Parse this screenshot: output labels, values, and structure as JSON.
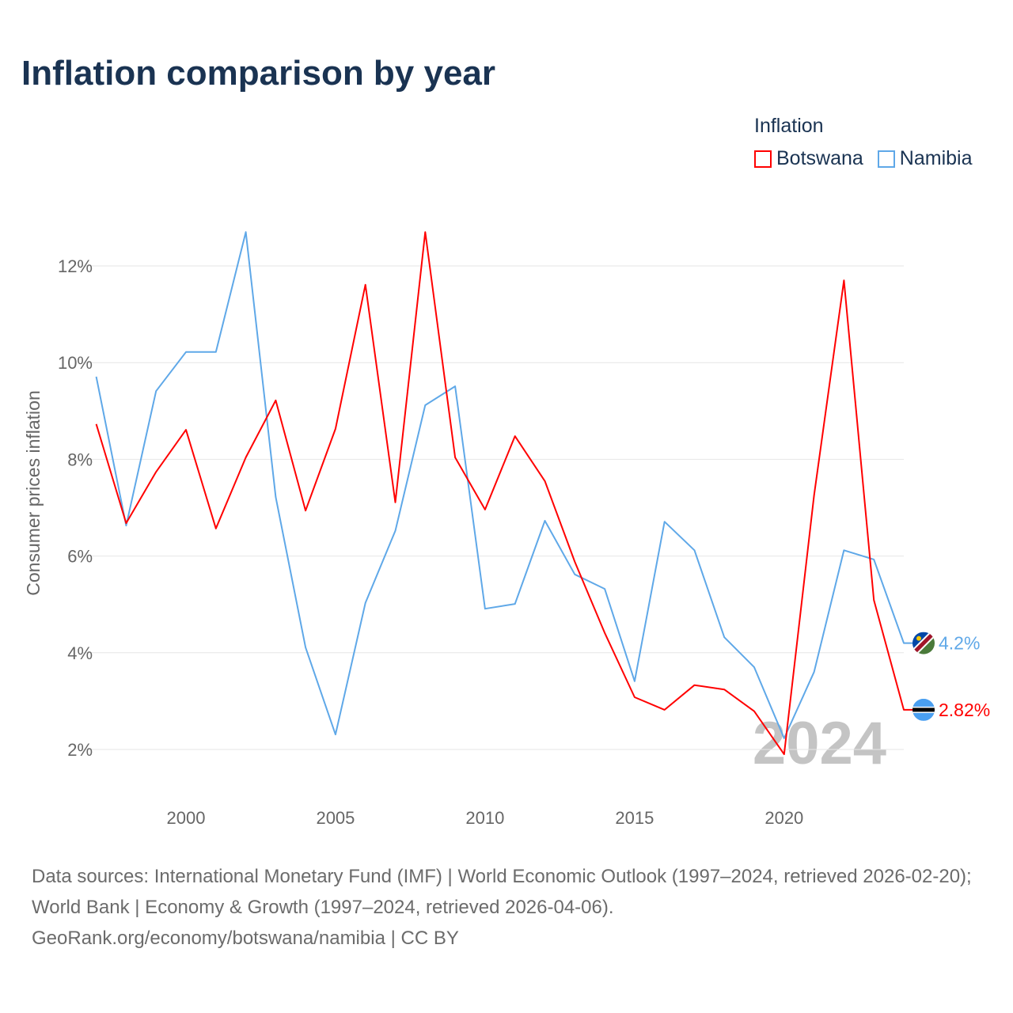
{
  "title": "Inflation comparison by year",
  "legend": {
    "title": "Inflation",
    "items": [
      {
        "label": "Botswana",
        "color": "#ff0000"
      },
      {
        "label": "Namibia",
        "color": "#5fa8e8"
      }
    ]
  },
  "chart_data": {
    "type": "line",
    "title": "Inflation comparison by year",
    "ylabel": "Consumer prices inflation",
    "xlabel": "",
    "x": [
      1997,
      1998,
      1999,
      2000,
      2001,
      2002,
      2003,
      2004,
      2005,
      2006,
      2007,
      2008,
      2009,
      2010,
      2011,
      2012,
      2013,
      2014,
      2015,
      2016,
      2017,
      2018,
      2019,
      2020,
      2021,
      2022,
      2023,
      2024
    ],
    "xticks": [
      2000,
      2005,
      2010,
      2015,
      2020
    ],
    "xtick_labels": [
      "2000",
      "2005",
      "2010",
      "2015",
      "2020"
    ],
    "yticks": [
      2,
      4,
      6,
      8,
      10,
      12
    ],
    "ytick_labels": [
      "2%",
      "4%",
      "6%",
      "8%",
      "10%",
      "12%"
    ],
    "xlim": [
      1997,
      2024
    ],
    "ylim": [
      2,
      12
    ],
    "grid": true,
    "legend_position": "top-right",
    "watermark_year": "2024",
    "series": [
      {
        "name": "Botswana",
        "color": "#ff0000",
        "end_label": "2.82%",
        "values": [
          8.73,
          6.68,
          7.74,
          8.61,
          6.57,
          8.04,
          9.22,
          6.94,
          8.63,
          11.61,
          7.11,
          12.7,
          8.04,
          6.96,
          8.48,
          7.55,
          5.88,
          4.41,
          3.08,
          2.82,
          3.33,
          3.24,
          2.79,
          1.9,
          7.25,
          11.7,
          5.09,
          2.82
        ]
      },
      {
        "name": "Namibia",
        "color": "#5fa8e8",
        "end_label": "4.2%",
        "values": [
          9.71,
          6.63,
          9.41,
          10.22,
          10.22,
          12.7,
          7.22,
          4.11,
          2.31,
          5.03,
          6.52,
          9.12,
          9.51,
          4.91,
          5.01,
          6.73,
          5.62,
          5.32,
          3.41,
          6.71,
          6.12,
          4.32,
          3.7,
          2.23,
          3.6,
          6.12,
          5.93,
          4.2
        ]
      }
    ]
  },
  "footer": {
    "sources": "Data sources: International Monetary Fund (IMF) | World Economic Outlook (1997–2024, retrieved 2026-02-20); World Bank | Economy & Growth (1997–2024, retrieved 2026-04-06).",
    "credit": "GeoRank.org/economy/botswana/namibia | CC BY"
  }
}
